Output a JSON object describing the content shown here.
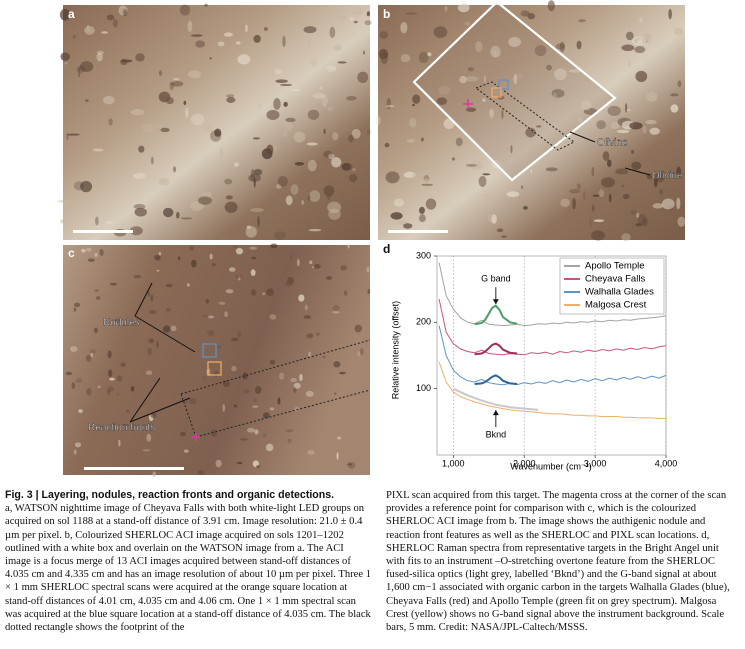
{
  "figure": {
    "panels": [
      {
        "label": "a"
      },
      {
        "label": "b",
        "annotations": [
          "Olivine",
          "Olivine"
        ]
      },
      {
        "label": "c",
        "annotations": [
          "Nodules",
          "Reaction fronts"
        ]
      },
      {
        "label": "d"
      }
    ]
  },
  "chart_data": {
    "type": "line",
    "ylabel": "Relative intensity (offset)",
    "xlabel": "Wavenumber (cm⁻¹)",
    "xlim": [
      770,
      4000
    ],
    "ylim": [
      0,
      300
    ],
    "xticks": [
      {
        "value": 1000,
        "label": "1,000"
      },
      {
        "value": 2000,
        "label": "2,000"
      },
      {
        "value": 3000,
        "label": "3,000"
      },
      {
        "value": 4000,
        "label": "4,000"
      }
    ],
    "yticks": [
      100,
      200,
      300
    ],
    "grid": true,
    "legend": "upper right",
    "x": [
      800,
      900,
      1000,
      1100,
      1200,
      1300,
      1400,
      1500,
      1600,
      1700,
      1800,
      1900,
      2000,
      2100,
      2200,
      2300,
      2400,
      2500,
      2600,
      2700,
      2800,
      2900,
      3000,
      3100,
      3200,
      3300,
      3400,
      3500,
      3600,
      3700,
      3800,
      3900,
      4000
    ],
    "series": [
      {
        "name": "Apollo Temple",
        "color": "#a3a3a3",
        "values": [
          290,
          240,
          220,
          207,
          200,
          198,
          203,
          197,
          196,
          195,
          196,
          197,
          195,
          196,
          198,
          197,
          199,
          198,
          200,
          199,
          201,
          200,
          202,
          201,
          203,
          202,
          204,
          203,
          205,
          206,
          207,
          208,
          210
        ]
      },
      {
        "name": "Cheyava Falls",
        "color": "#c8557f",
        "values": [
          235,
          185,
          168,
          160,
          156,
          154,
          158,
          153,
          152,
          151,
          153,
          152,
          151,
          154,
          153,
          155,
          152,
          156,
          154,
          157,
          155,
          158,
          156,
          159,
          157,
          160,
          158,
          161,
          159,
          162,
          160,
          163,
          165
        ]
      },
      {
        "name": "Walhalla Glades",
        "color": "#5f93c6",
        "values": [
          195,
          150,
          128,
          118,
          112,
          110,
          114,
          109,
          107,
          106,
          108,
          106,
          109,
          107,
          110,
          108,
          112,
          109,
          113,
          110,
          114,
          111,
          115,
          112,
          116,
          113,
          117,
          114,
          118,
          115,
          119,
          116,
          120
        ]
      },
      {
        "name": "Malgosa Crest",
        "color": "#f2ae6a",
        "values": [
          140,
          110,
          95,
          88,
          84,
          80,
          77,
          74,
          72,
          70,
          68,
          67,
          66,
          65,
          64,
          63,
          62,
          62,
          61,
          60,
          60,
          59,
          59,
          58,
          58,
          58,
          57,
          57,
          56,
          56,
          56,
          55,
          55
        ]
      }
    ],
    "fits": [
      {
        "color": "#4f9a6a",
        "x": [
          1300,
          1400,
          1450,
          1500,
          1550,
          1600,
          1650,
          1700,
          1800,
          1900
        ],
        "values": [
          197,
          199,
          204,
          213,
          222,
          225,
          219,
          208,
          200,
          198
        ]
      },
      {
        "color": "#9e2f5c",
        "x": [
          1300,
          1400,
          1450,
          1500,
          1550,
          1600,
          1650,
          1700,
          1800,
          1900
        ],
        "values": [
          152,
          153,
          156,
          161,
          166,
          168,
          165,
          159,
          154,
          153
        ]
      },
      {
        "color": "#2f6590",
        "x": [
          1300,
          1400,
          1450,
          1500,
          1550,
          1600,
          1650,
          1700,
          1800,
          1900
        ],
        "values": [
          107,
          108,
          110,
          114,
          118,
          120,
          117,
          112,
          108,
          107
        ]
      },
      {
        "color": "#c9c9c9",
        "x": [
          1000,
          1200,
          1400,
          1600,
          1800,
          2000,
          2200
        ],
        "values": [
          100,
          90,
          82,
          76,
          72,
          70,
          68
        ]
      }
    ],
    "annotations": [
      {
        "text": "G band",
        "x": 1600,
        "y": 265
      },
      {
        "text": "Bknd",
        "x": 1600,
        "y": 30
      }
    ]
  },
  "caption": {
    "title": "Fig. 3 | Layering, nodules, reaction fronts and organic detections.",
    "left": "a, WATSON nighttime image of Cheyava Falls with both white-light LED groups on acquired on sol 1188 at a stand-off distance of 3.91 cm. Image resolution: 21.0 ± 0.4 µm per pixel. b, Colourized SHERLOC ACI image acquired on sols 1201–1202 outlined with a white box and overlain on the WATSON image from a. The ACI image is a focus merge of 13 ACI images acquired between stand-off distances of 4.035 cm and 4.335 cm and has an image resolution of about 10 µm per pixel. Three 1 × 1 mm SHERLOC spectral scans were acquired at the orange square location at stand-off distances of 4.01 cm, 4.035 cm and 4.06 cm. One 1 × 1 mm spectral scan was acquired at the blue square location at a stand-off distance of 4.035 cm. The black dotted rectangle shows the footprint of the",
    "right": "PIXL scan acquired from this target. The magenta cross at the corner of the scan provides a reference point for comparison with c, which is the colourized SHERLOC ACI image from b. The image shows the authigenic nodule and reaction front features as well as the SHERLOC and PIXL scan locations. d, SHERLOC Raman spectra from representative targets in the Bright Angel unit with fits to an instrument –O-stretching overtone feature from the SHERLOC fused-silica optics (light grey, labelled ‘Bknd’) and the G-band signal at about 1,600 cm−1 associated with organic carbon in the targets Walhalla Glades (blue), Cheyava Falls (red) and Apollo Temple (green fit on grey spectrum). Malgosa Crest (yellow) shows no G-band signal above the instrument background. Scale bars, 5 mm. Credit: NASA/JPL-Caltech/MSSS."
  }
}
